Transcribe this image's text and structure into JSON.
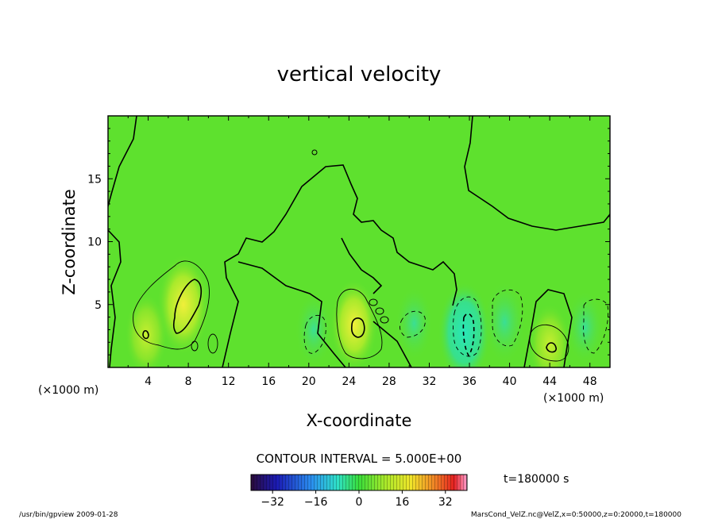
{
  "chart_data": {
    "type": "heatmap",
    "title": "vertical velocity",
    "xlabel": "X-coordinate",
    "ylabel": "Z-coordinate",
    "x_unit": "(×1000 m)",
    "y_unit": "(×1000 m)",
    "xlim": [
      0,
      50
    ],
    "ylim": [
      0,
      20
    ],
    "x_ticks": [
      4,
      8,
      12,
      16,
      20,
      24,
      28,
      32,
      36,
      40,
      44,
      48
    ],
    "y_ticks": [
      5,
      10,
      15
    ],
    "contour_interval": "CONTOUR INTERVAL = 5.000E+00",
    "time_label": "t=180000 s",
    "colorbar": {
      "range": [
        -40,
        40
      ],
      "ticks": [
        -32,
        -16,
        0,
        16,
        32
      ],
      "colormap": "rainbow"
    },
    "features": [
      {
        "x": 7.5,
        "z": 5.0,
        "value": 12,
        "sign": "positive"
      },
      {
        "x": 3.8,
        "z": 2.6,
        "value": 8,
        "sign": "positive"
      },
      {
        "x": 24.5,
        "z": 3.4,
        "value": 10,
        "sign": "positive"
      },
      {
        "x": 44.0,
        "z": 1.8,
        "value": 8,
        "sign": "positive"
      },
      {
        "x": 20.5,
        "z": 3.0,
        "value": -6,
        "sign": "negative"
      },
      {
        "x": 30.5,
        "z": 3.5,
        "value": -6,
        "sign": "negative"
      },
      {
        "x": 35.5,
        "z": 2.8,
        "value": -12,
        "sign": "negative"
      },
      {
        "x": 39.5,
        "z": 3.6,
        "value": -8,
        "sign": "negative"
      },
      {
        "x": 47.5,
        "z": 3.2,
        "value": -6,
        "sign": "negative"
      }
    ]
  },
  "footer": {
    "left": "/usr/bin/gpview  2009-01-28",
    "right": "MarsCond_VelZ.nc@VelZ,x=0:50000,z=0:20000,t=180000"
  }
}
